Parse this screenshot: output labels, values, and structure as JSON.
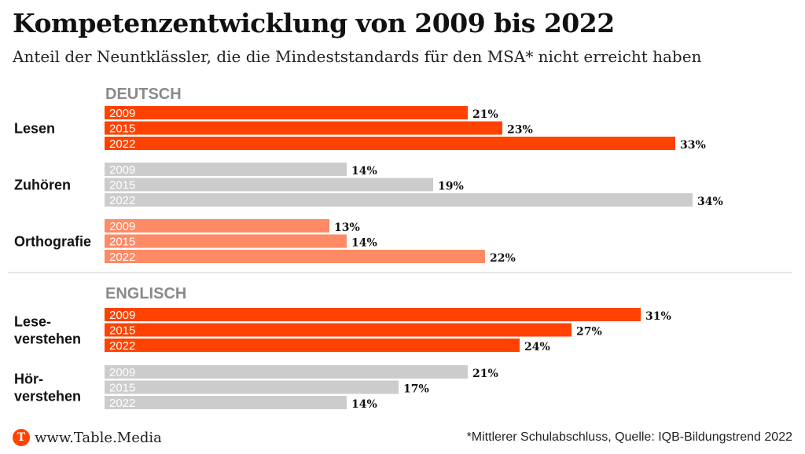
{
  "title": "Kompetenzentwicklung von 2009 bis 2022",
  "subtitle": "Anteil der Neuntklässler, die die Mindeststandards für den MSA* nicht erreicht haben",
  "footer": {
    "logo_letter": "T",
    "site": "www.Table.Media",
    "source": "*Mittlerer Schulabschluss, Quelle: IQB-Bildungstrend 2022"
  },
  "colors": {
    "orange": "#ff4200",
    "gray": "#cccccc",
    "salmon": "#ff8a65",
    "section_label": "#8a8a8a"
  },
  "chart_data": {
    "type": "bar",
    "orientation": "horizontal",
    "value_unit": "%",
    "sections": [
      {
        "name": "DEUTSCH",
        "groups": [
          {
            "label": [
              "Lesen"
            ],
            "color": "orange",
            "bars": [
              {
                "year": "2009",
                "value": 21
              },
              {
                "year": "2015",
                "value": 23
              },
              {
                "year": "2022",
                "value": 33
              }
            ]
          },
          {
            "label": [
              "Zuhören"
            ],
            "color": "gray",
            "bars": [
              {
                "year": "2009",
                "value": 14
              },
              {
                "year": "2015",
                "value": 19
              },
              {
                "year": "2022",
                "value": 34
              }
            ]
          },
          {
            "label": [
              "Orthografie"
            ],
            "color": "salmon",
            "bars": [
              {
                "year": "2009",
                "value": 13
              },
              {
                "year": "2015",
                "value": 14
              },
              {
                "year": "2022",
                "value": 22
              }
            ]
          }
        ]
      },
      {
        "name": "ENGLISCH",
        "groups": [
          {
            "label": [
              "Lese-",
              "verstehen"
            ],
            "color": "orange",
            "bars": [
              {
                "year": "2009",
                "value": 31
              },
              {
                "year": "2015",
                "value": 27
              },
              {
                "year": "2022",
                "value": 24
              }
            ]
          },
          {
            "label": [
              "Hör-",
              "verstehen"
            ],
            "color": "gray",
            "bars": [
              {
                "year": "2009",
                "value": 21
              },
              {
                "year": "2015",
                "value": 17
              },
              {
                "year": "2022",
                "value": 14
              }
            ]
          }
        ]
      }
    ]
  }
}
